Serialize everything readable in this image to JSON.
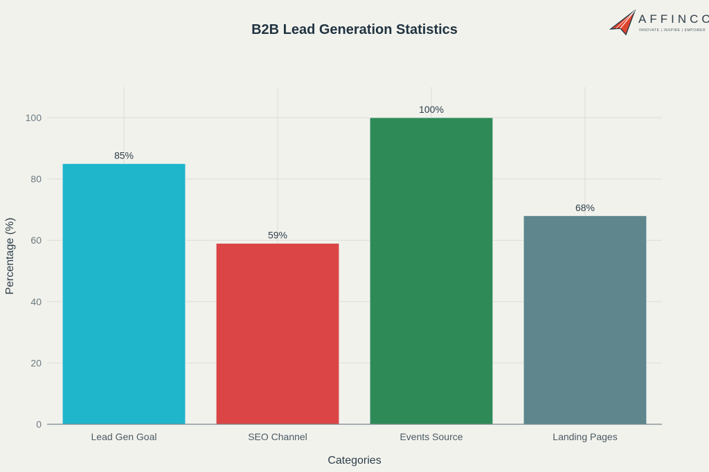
{
  "logo": {
    "name": "AFFINCO",
    "tagline": "INNOVATE | INSPIRE | EMPOWER"
  },
  "chart_data": {
    "type": "bar",
    "title": "B2B Lead Generation Statistics",
    "xlabel": "Categories",
    "ylabel": "Percentage (%)",
    "categories": [
      "Lead Gen Goal",
      "SEO Channel",
      "Events Source",
      "Landing Pages"
    ],
    "values": [
      85,
      59,
      100,
      68
    ],
    "data_labels": [
      "85%",
      "59%",
      "100%",
      "68%"
    ],
    "colors": [
      "#1fb5cb",
      "#db4545",
      "#2e8b57",
      "#5e868c"
    ],
    "yticks": [
      0,
      20,
      40,
      60,
      80,
      100
    ],
    "ylim": [
      0,
      110
    ],
    "grid": true,
    "legend": "none"
  }
}
